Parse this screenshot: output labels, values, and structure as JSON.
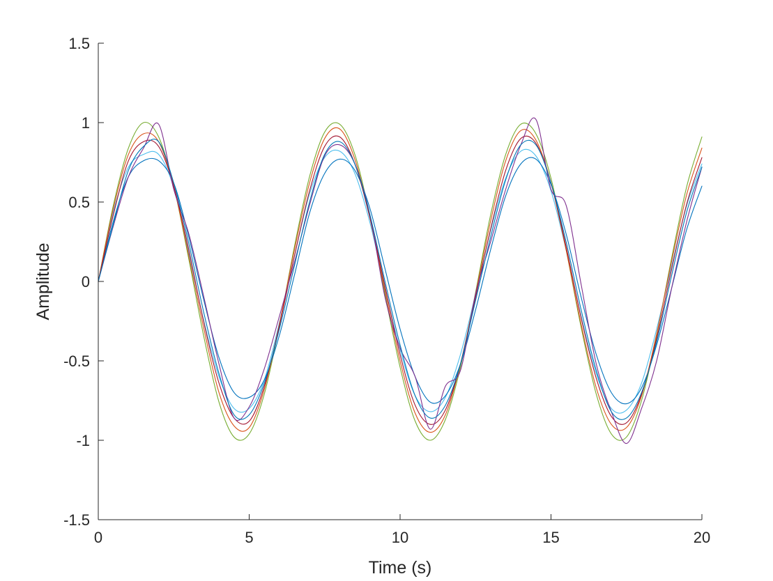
{
  "chart_data": {
    "type": "line",
    "title": "",
    "xlabel": "Time (s)",
    "ylabel": "Amplitude",
    "xlim": [
      0,
      20
    ],
    "ylim": [
      -1.5,
      1.5
    ],
    "grid": false,
    "legend": "none",
    "x_ticks": [
      0,
      5,
      10,
      15,
      20
    ],
    "x_tick_labels": [
      "0",
      "5",
      "10",
      "15",
      "20"
    ],
    "y_ticks": [
      -1.5,
      -1,
      -0.5,
      0,
      0.5,
      1,
      1.5
    ],
    "y_tick_labels": [
      "-1.5",
      "-1",
      "-0.5",
      "0",
      "0.5",
      "1",
      "1.5"
    ],
    "series": [
      {
        "color": "#77AC30",
        "x": [
          0,
          0.5,
          1,
          1.5,
          2,
          2.5,
          3,
          3.5,
          4,
          4.5,
          5,
          5.5,
          6,
          6.5,
          7,
          7.5,
          8,
          8.5,
          9,
          9.5,
          10,
          10.5,
          11,
          11.5,
          12,
          12.5,
          13,
          13.5,
          14,
          14.5,
          15,
          15.5,
          16,
          16.5,
          17,
          17.5,
          18,
          18.5,
          19,
          19.5,
          20
        ],
        "y": [
          0,
          0.48,
          0.84,
          1.0,
          0.91,
          0.6,
          0.14,
          -0.35,
          -0.76,
          -0.98,
          -0.96,
          -0.71,
          -0.28,
          0.22,
          0.66,
          0.94,
          0.99,
          0.8,
          0.41,
          -0.08,
          -0.54,
          -0.88,
          -1.0,
          -0.87,
          -0.54,
          -0.07,
          0.42,
          0.8,
          0.99,
          0.93,
          0.65,
          0.2,
          -0.29,
          -0.71,
          -0.96,
          -0.98,
          -0.75,
          -0.34,
          0.15,
          0.6,
          0.91
        ]
      },
      {
        "color": "#4DBEEE",
        "x": [
          0,
          0.5,
          1,
          1.5,
          2,
          2.5,
          3,
          3.5,
          4,
          4.5,
          5,
          5.5,
          6,
          6.5,
          7,
          7.5,
          8,
          8.5,
          9,
          9.5,
          10,
          10.5,
          11,
          11.5,
          12,
          12.5,
          13,
          13.5,
          14,
          14.5,
          15,
          15.5,
          16,
          16.5,
          17,
          17.5,
          18,
          18.5,
          19,
          19.5,
          20
        ],
        "y": [
          0,
          0.44,
          0.72,
          0.8,
          0.8,
          0.59,
          0.18,
          -0.25,
          -0.6,
          -0.8,
          -0.8,
          -0.62,
          -0.26,
          0.16,
          0.55,
          0.78,
          0.82,
          0.68,
          0.37,
          -0.04,
          -0.43,
          -0.72,
          -0.82,
          -0.73,
          -0.46,
          -0.08,
          0.32,
          0.65,
          0.82,
          0.79,
          0.57,
          0.2,
          -0.22,
          -0.58,
          -0.8,
          -0.81,
          -0.64,
          -0.3,
          0.1,
          0.48,
          0.74
        ]
      },
      {
        "color": "#0072BD",
        "x": [
          0,
          0.5,
          1,
          1.5,
          2,
          2.5,
          3,
          3.5,
          4,
          4.5,
          5,
          5.5,
          6,
          6.5,
          7,
          7.5,
          8,
          8.5,
          9,
          9.5,
          10,
          10.5,
          11,
          11.5,
          12,
          12.5,
          13,
          13.5,
          14,
          14.5,
          15,
          15.5,
          16,
          16.5,
          17,
          17.5,
          18,
          18.5,
          19,
          19.5,
          20
        ],
        "y": [
          0,
          0.38,
          0.66,
          0.76,
          0.76,
          0.62,
          0.28,
          -0.12,
          -0.48,
          -0.7,
          -0.73,
          -0.62,
          -0.34,
          0.04,
          0.43,
          0.68,
          0.77,
          0.7,
          0.46,
          0.08,
          -0.3,
          -0.6,
          -0.76,
          -0.72,
          -0.52,
          -0.18,
          0.2,
          0.54,
          0.74,
          0.77,
          0.61,
          0.3,
          -0.1,
          -0.46,
          -0.7,
          -0.77,
          -0.67,
          -0.4,
          -0.04,
          0.33,
          0.6
        ]
      },
      {
        "color": "#D95319",
        "x": [
          0,
          0.5,
          1,
          1.5,
          2,
          2.5,
          3,
          3.5,
          4,
          4.5,
          5,
          5.5,
          6,
          6.5,
          7,
          7.5,
          8,
          8.5,
          9,
          9.5,
          10,
          10.5,
          11,
          11.5,
          12,
          12.5,
          13,
          13.5,
          14,
          14.5,
          15,
          15.5,
          16,
          16.5,
          17,
          17.5,
          18,
          18.5,
          19,
          19.5,
          20
        ],
        "y": [
          0,
          0.46,
          0.8,
          0.93,
          0.88,
          0.6,
          0.16,
          -0.3,
          -0.7,
          -0.91,
          -0.92,
          -0.68,
          -0.27,
          0.2,
          0.62,
          0.9,
          0.96,
          0.77,
          0.4,
          -0.06,
          -0.5,
          -0.83,
          -0.95,
          -0.84,
          -0.52,
          -0.08,
          0.38,
          0.76,
          0.95,
          0.89,
          0.62,
          0.2,
          -0.27,
          -0.67,
          -0.9,
          -0.92,
          -0.72,
          -0.33,
          0.13,
          0.55,
          0.84
        ]
      },
      {
        "color": "#A2142F",
        "x": [
          0,
          0.5,
          1,
          1.5,
          2,
          2.5,
          3,
          3.5,
          4,
          4.5,
          5,
          5.5,
          6,
          6.5,
          7,
          7.5,
          8,
          8.5,
          9,
          9.5,
          10,
          10.5,
          11,
          11.5,
          12,
          12.5,
          13,
          13.5,
          14,
          14.5,
          15,
          15.5,
          16,
          16.5,
          17,
          17.5,
          18,
          18.5,
          19,
          19.5,
          20
        ],
        "y": [
          0,
          0.42,
          0.76,
          0.88,
          0.85,
          0.6,
          0.2,
          -0.26,
          -0.64,
          -0.86,
          -0.88,
          -0.66,
          -0.28,
          0.16,
          0.57,
          0.85,
          0.91,
          0.74,
          0.4,
          -0.03,
          -0.46,
          -0.78,
          -0.9,
          -0.81,
          -0.52,
          -0.1,
          0.33,
          0.7,
          0.9,
          0.87,
          0.62,
          0.22,
          -0.23,
          -0.61,
          -0.85,
          -0.89,
          -0.71,
          -0.36,
          0.08,
          0.49,
          0.78
        ]
      },
      {
        "color": "#7E2F8E",
        "x": [
          0,
          0.5,
          1,
          1.5,
          2,
          2.5,
          3,
          3.5,
          4,
          4.5,
          5,
          5.5,
          6,
          6.5,
          7,
          7.5,
          8,
          8.5,
          9,
          9.5,
          10,
          10.5,
          11,
          11.5,
          12,
          12.5,
          13,
          13.5,
          14,
          14.5,
          15,
          15.5,
          16,
          16.5,
          17,
          17.5,
          18,
          18.5,
          19,
          19.5,
          20
        ],
        "y": [
          0,
          0.35,
          0.66,
          0.84,
          0.99,
          0.58,
          0.3,
          -0.1,
          -0.52,
          -0.86,
          -0.79,
          -0.55,
          -0.22,
          0.12,
          0.48,
          0.79,
          0.86,
          0.74,
          0.42,
          -0.1,
          -0.42,
          -0.6,
          -0.93,
          -0.66,
          -0.56,
          -0.08,
          0.25,
          0.58,
          0.86,
          1.02,
          0.58,
          0.48,
          -0.02,
          -0.52,
          -0.82,
          -1.02,
          -0.8,
          -0.5,
          -0.04,
          0.38,
          0.72
        ]
      },
      {
        "color": "#0077B6",
        "x": [
          0,
          0.5,
          1,
          1.5,
          2,
          2.5,
          3,
          3.5,
          4,
          4.5,
          5,
          5.5,
          6,
          6.5,
          7,
          7.5,
          8,
          8.5,
          9,
          9.5,
          10,
          10.5,
          11,
          11.5,
          12,
          12.5,
          13,
          13.5,
          14,
          14.5,
          15,
          15.5,
          16,
          16.5,
          17,
          17.5,
          18,
          18.5,
          19,
          19.5,
          20
        ],
        "y": [
          0,
          0.36,
          0.7,
          0.85,
          0.88,
          0.62,
          0.24,
          -0.2,
          -0.58,
          -0.84,
          -0.84,
          -0.64,
          -0.3,
          0.1,
          0.5,
          0.8,
          0.88,
          0.74,
          0.42,
          0.0,
          -0.4,
          -0.72,
          -0.86,
          -0.78,
          -0.52,
          -0.12,
          0.28,
          0.64,
          0.86,
          0.86,
          0.62,
          0.25,
          -0.18,
          -0.56,
          -0.82,
          -0.86,
          -0.7,
          -0.38,
          0.04,
          0.44,
          0.72
        ]
      }
    ]
  }
}
